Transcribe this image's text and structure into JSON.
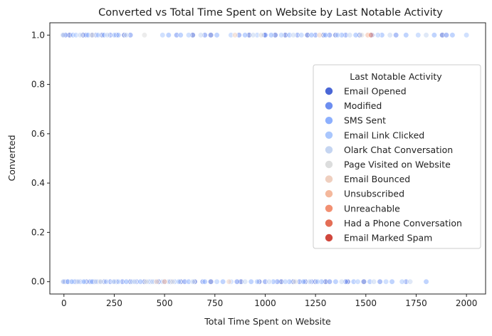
{
  "chart_data": {
    "type": "scatter",
    "title": "Converted vs Total Time Spent on Website by Last Notable Activity",
    "xlabel": "Total Time Spent on Website",
    "ylabel": "Converted",
    "xlim": [
      -70,
      2095
    ],
    "ylim": [
      -0.05,
      1.05
    ],
    "xticks": [
      0,
      250,
      500,
      750,
      1000,
      1250,
      1500,
      1750,
      2000
    ],
    "xtick_labels": [
      "0",
      "250",
      "500",
      "750",
      "1000",
      "1250",
      "1500",
      "1750",
      "2000"
    ],
    "yticks": [
      0.0,
      0.2,
      0.4,
      0.6,
      0.8,
      1.0
    ],
    "ytick_labels": [
      "0.0",
      "0.2",
      "0.4",
      "0.6",
      "0.8",
      "1.0"
    ],
    "grid": false,
    "legend": {
      "title": "Last Notable Activity",
      "placement": "center-right",
      "entries": [
        {
          "label": "Email Opened",
          "color": "#4a67d6"
        },
        {
          "label": "Modified",
          "color": "#6d8ef0"
        },
        {
          "label": "SMS Sent",
          "color": "#8db0fe"
        },
        {
          "label": "Email Link Clicked",
          "color": "#aac7fd"
        },
        {
          "label": "Olark Chat Conversation",
          "color": "#c5d5f1"
        },
        {
          "label": "Page Visited on Website",
          "color": "#dcdddd"
        },
        {
          "label": "Email Bounced",
          "color": "#efcfbf"
        },
        {
          "label": "Unsubscribed",
          "color": "#f4b89c"
        },
        {
          "label": "Unreachable",
          "color": "#f29072"
        },
        {
          "label": "Had a Phone Conversation",
          "color": "#e46e56"
        },
        {
          "label": "Email Marked Spam",
          "color": "#d0473d"
        }
      ]
    },
    "series": [
      {
        "category": "Email Opened",
        "color": "#4a67d6",
        "points": [
          [
            0,
            1
          ],
          [
            28,
            1
          ],
          [
            95,
            1
          ],
          [
            140,
            1
          ],
          [
            190,
            1
          ],
          [
            260,
            1
          ],
          [
            300,
            1
          ],
          [
            640,
            1
          ],
          [
            730,
            1
          ],
          [
            920,
            1
          ],
          [
            995,
            1
          ],
          [
            1050,
            1
          ],
          [
            1100,
            1
          ],
          [
            1210,
            1
          ],
          [
            1290,
            1
          ],
          [
            1350,
            1
          ],
          [
            1470,
            1
          ],
          [
            1530,
            1
          ],
          [
            1880,
            1
          ],
          [
            0,
            0
          ],
          [
            15,
            0
          ],
          [
            60,
            0
          ],
          [
            110,
            0
          ],
          [
            150,
            0
          ],
          [
            200,
            0
          ],
          [
            260,
            0
          ],
          [
            330,
            0
          ],
          [
            400,
            0
          ],
          [
            470,
            0
          ],
          [
            530,
            0
          ],
          [
            580,
            0
          ],
          [
            650,
            0
          ],
          [
            730,
            0
          ],
          [
            880,
            0
          ],
          [
            970,
            0
          ],
          [
            1080,
            0
          ],
          [
            1140,
            0
          ],
          [
            1200,
            0
          ],
          [
            1250,
            0
          ],
          [
            1300,
            0
          ],
          [
            1410,
            0
          ],
          [
            1490,
            0
          ]
        ]
      },
      {
        "category": "Modified",
        "color": "#6d8ef0",
        "points": [
          [
            8,
            1
          ],
          [
            110,
            1
          ],
          [
            160,
            1
          ],
          [
            230,
            1
          ],
          [
            330,
            1
          ],
          [
            560,
            1
          ],
          [
            700,
            1
          ],
          [
            870,
            1
          ],
          [
            1000,
            1
          ],
          [
            1160,
            1
          ],
          [
            1250,
            1
          ],
          [
            1320,
            1
          ],
          [
            1400,
            1
          ],
          [
            1650,
            1
          ],
          [
            1900,
            1
          ],
          [
            5,
            0
          ],
          [
            35,
            0
          ],
          [
            80,
            0
          ],
          [
            130,
            0
          ],
          [
            170,
            0
          ],
          [
            230,
            0
          ],
          [
            290,
            0
          ],
          [
            360,
            0
          ],
          [
            430,
            0
          ],
          [
            500,
            0
          ],
          [
            600,
            0
          ],
          [
            690,
            0
          ],
          [
            860,
            0
          ],
          [
            1000,
            0
          ],
          [
            1060,
            0
          ],
          [
            1170,
            0
          ],
          [
            1230,
            0
          ],
          [
            1320,
            0
          ],
          [
            1400,
            0
          ],
          [
            1570,
            0
          ],
          [
            1700,
            0
          ]
        ]
      },
      {
        "category": "SMS Sent",
        "color": "#8db0fe",
        "points": [
          [
            45,
            1
          ],
          [
            120,
            1
          ],
          [
            200,
            1
          ],
          [
            270,
            1
          ],
          [
            520,
            1
          ],
          [
            580,
            1
          ],
          [
            760,
            1
          ],
          [
            900,
            1
          ],
          [
            1030,
            1
          ],
          [
            1120,
            1
          ],
          [
            1230,
            1
          ],
          [
            1300,
            1
          ],
          [
            1380,
            1
          ],
          [
            1450,
            1
          ],
          [
            1580,
            1
          ],
          [
            1700,
            1
          ],
          [
            1840,
            1
          ],
          [
            1930,
            1
          ],
          [
            20,
            0
          ],
          [
            50,
            0
          ],
          [
            95,
            0
          ],
          [
            140,
            0
          ],
          [
            185,
            0
          ],
          [
            245,
            0
          ],
          [
            310,
            0
          ],
          [
            380,
            0
          ],
          [
            450,
            0
          ],
          [
            550,
            0
          ],
          [
            620,
            0
          ],
          [
            700,
            0
          ],
          [
            790,
            0
          ],
          [
            930,
            0
          ],
          [
            1040,
            0
          ],
          [
            1120,
            0
          ],
          [
            1190,
            0
          ],
          [
            1280,
            0
          ],
          [
            1350,
            0
          ],
          [
            1440,
            0
          ],
          [
            1520,
            0
          ],
          [
            1630,
            0
          ],
          [
            1800,
            0
          ]
        ]
      },
      {
        "category": "Email Link Clicked",
        "color": "#aac7fd",
        "points": [
          [
            60,
            1
          ],
          [
            170,
            1
          ],
          [
            250,
            1
          ],
          [
            490,
            1
          ],
          [
            620,
            1
          ],
          [
            830,
            1
          ],
          [
            960,
            1
          ],
          [
            1080,
            1
          ],
          [
            1180,
            1
          ],
          [
            1360,
            1
          ],
          [
            1560,
            1
          ],
          [
            1760,
            1
          ],
          [
            2000,
            1
          ],
          [
            40,
            0
          ],
          [
            100,
            0
          ],
          [
            210,
            0
          ],
          [
            270,
            0
          ],
          [
            340,
            0
          ],
          [
            420,
            0
          ],
          [
            490,
            0
          ],
          [
            570,
            0
          ],
          [
            760,
            0
          ],
          [
            830,
            0
          ],
          [
            960,
            0
          ],
          [
            1100,
            0
          ],
          [
            1260,
            0
          ],
          [
            1460,
            0
          ],
          [
            1600,
            0
          ],
          [
            1680,
            0
          ]
        ]
      },
      {
        "category": "Olark Chat Conversation",
        "color": "#c5d5f1",
        "points": [
          [
            -5,
            1
          ],
          [
            80,
            1
          ],
          [
            215,
            1
          ],
          [
            310,
            1
          ],
          [
            680,
            1
          ],
          [
            940,
            1
          ],
          [
            1140,
            1
          ],
          [
            1420,
            1
          ],
          [
            1620,
            1
          ],
          [
            1800,
            1
          ],
          [
            -3,
            0
          ],
          [
            70,
            0
          ],
          [
            160,
            0
          ],
          [
            250,
            0
          ],
          [
            350,
            0
          ],
          [
            440,
            0
          ],
          [
            520,
            0
          ],
          [
            640,
            0
          ],
          [
            900,
            0
          ],
          [
            1020,
            0
          ],
          [
            1220,
            0
          ],
          [
            1380,
            0
          ],
          [
            1540,
            0
          ],
          [
            1720,
            0
          ]
        ]
      },
      {
        "category": "Page Visited on Website",
        "color": "#dcdddd",
        "points": [
          [
            140,
            1
          ],
          [
            400,
            1
          ],
          [
            980,
            1
          ],
          [
            1480,
            1
          ],
          [
            180,
            0
          ],
          [
            410,
            0
          ],
          [
            540,
            0
          ],
          [
            1150,
            0
          ]
        ]
      },
      {
        "category": "Email Bounced",
        "color": "#efcfbf",
        "points": [
          [
            850,
            1
          ],
          [
            1270,
            1
          ],
          [
            460,
            0
          ],
          [
            820,
            0
          ]
        ]
      },
      {
        "category": "Unsubscribed",
        "color": "#f4b89c",
        "points": [
          [
            1510,
            1
          ],
          [
            500,
            0
          ]
        ]
      },
      {
        "category": "Unreachable",
        "color": "#f29072",
        "points": [
          [
            1525,
            1
          ]
        ]
      },
      {
        "category": "Had a Phone Conversation",
        "color": "#e46e56",
        "points": []
      },
      {
        "category": "Email Marked Spam",
        "color": "#d0473d",
        "points": []
      }
    ]
  }
}
